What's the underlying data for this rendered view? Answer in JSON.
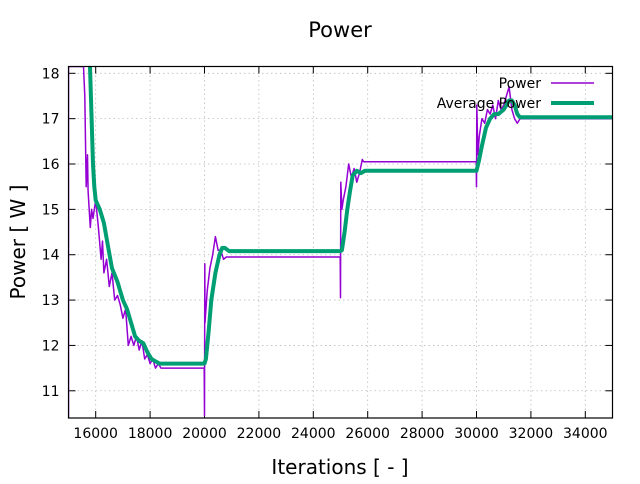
{
  "chart_data": {
    "type": "line",
    "title": "Power",
    "xlabel": "Iterations [ - ]",
    "ylabel": "Power [ W ]",
    "xlim": [
      15000,
      35000
    ],
    "ylim": [
      10.4,
      18.15
    ],
    "xticks": [
      16000,
      18000,
      20000,
      22000,
      24000,
      26000,
      28000,
      30000,
      32000,
      34000
    ],
    "yticks": [
      11,
      12,
      13,
      14,
      15,
      16,
      17,
      18
    ],
    "grid": true,
    "legend_position": "top-right",
    "series": [
      {
        "name": "Power",
        "color": "#9400d3",
        "x": [
          15000,
          15000,
          15550,
          15600,
          15650,
          15700,
          15720,
          15760,
          15800,
          15850,
          15900,
          15950,
          16000,
          16100,
          16200,
          16250,
          16300,
          16400,
          16500,
          16600,
          16700,
          16800,
          16900,
          17000,
          17100,
          17200,
          17300,
          17400,
          17500,
          17600,
          17700,
          17800,
          17900,
          18000,
          18100,
          18200,
          18300,
          18400,
          18500,
          19990,
          20000,
          20010,
          20020,
          20100,
          20200,
          20300,
          20400,
          20500,
          20600,
          20700,
          20800,
          24990,
          25000,
          25010,
          25050,
          25100,
          25200,
          25300,
          25400,
          25500,
          25600,
          25700,
          25800,
          25850,
          29990,
          30000,
          30010,
          30050,
          30100,
          30200,
          30300,
          30400,
          30500,
          30600,
          30700,
          30800,
          30900,
          31000,
          31100,
          31200,
          31300,
          31400,
          31500,
          31600,
          35000
        ],
        "y": [
          10.4,
          18.15,
          18.15,
          17.5,
          15.5,
          16.2,
          15.4,
          15.0,
          14.6,
          15.0,
          14.8,
          15.0,
          15.2,
          14.6,
          13.9,
          14.3,
          13.6,
          13.9,
          13.3,
          13.6,
          13.0,
          13.1,
          12.9,
          12.6,
          12.8,
          12.0,
          12.2,
          12.0,
          12.2,
          11.9,
          12.1,
          11.7,
          11.8,
          11.6,
          11.7,
          11.5,
          11.6,
          11.5,
          11.5,
          11.5,
          10.45,
          13.8,
          12.5,
          13.2,
          13.7,
          14.0,
          14.4,
          14.1,
          14.1,
          13.9,
          13.95,
          13.95,
          13.05,
          15.6,
          15.0,
          15.2,
          15.5,
          16.0,
          15.7,
          15.9,
          15.6,
          15.8,
          16.1,
          16.05,
          16.05,
          15.5,
          17.3,
          16.2,
          16.6,
          17.0,
          16.9,
          17.2,
          17.1,
          17.3,
          17.0,
          17.4,
          17.2,
          17.3,
          17.5,
          17.7,
          17.2,
          17.0,
          16.9,
          17.0,
          17.0
        ]
      },
      {
        "name": "Average Power",
        "color": "#009e73",
        "x": [
          15790,
          15850,
          15900,
          15950,
          16000,
          16150,
          16300,
          16450,
          16600,
          16800,
          17000,
          17150,
          17300,
          17450,
          17600,
          17750,
          17900,
          18050,
          18200,
          18350,
          18500,
          20000,
          20050,
          20150,
          20250,
          20400,
          20550,
          20650,
          20750,
          20900,
          25000,
          25050,
          25150,
          25250,
          25350,
          25450,
          25600,
          25750,
          25900,
          30000,
          30100,
          30200,
          30350,
          30500,
          30650,
          30800,
          31000,
          31200,
          31300,
          31400,
          31500,
          31600,
          35000
        ],
        "y": [
          18.15,
          17.0,
          16.0,
          15.5,
          15.2,
          15.0,
          14.7,
          14.2,
          13.7,
          13.4,
          13.0,
          12.8,
          12.5,
          12.2,
          12.1,
          12.05,
          11.85,
          11.7,
          11.65,
          11.6,
          11.6,
          11.6,
          11.7,
          12.3,
          13.0,
          13.6,
          14.0,
          14.15,
          14.15,
          14.08,
          14.08,
          14.1,
          14.5,
          15.0,
          15.4,
          15.75,
          15.85,
          15.8,
          15.85,
          15.85,
          16.1,
          16.4,
          16.8,
          17.0,
          17.1,
          17.1,
          17.2,
          17.4,
          17.4,
          17.3,
          17.1,
          17.03,
          17.03
        ]
      }
    ]
  }
}
